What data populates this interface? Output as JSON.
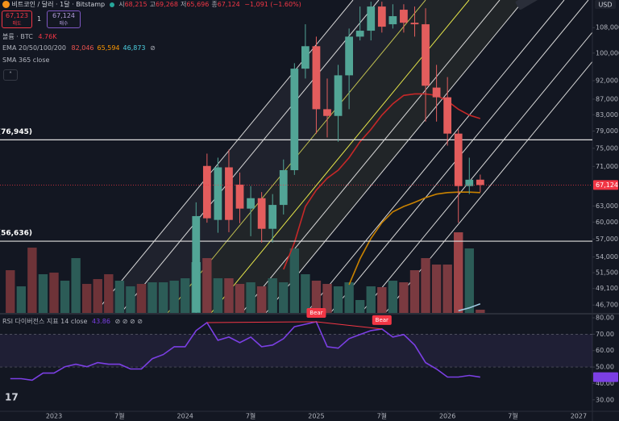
{
  "header": {
    "symbol": "비트코인 / 달러 · 1달 · Bitstamp",
    "ohlc": [
      {
        "label": "시",
        "value": "68,215"
      },
      {
        "label": "고",
        "value": "69,268"
      },
      {
        "label": "저",
        "value": "65,696"
      },
      {
        "label": "종",
        "value": "67,124"
      }
    ],
    "change": "−1,091 (−1.60%)"
  },
  "order_buttons": {
    "sell_price": "67,123",
    "sell_label": "매도",
    "quantity": "1",
    "buy_price": "67,124",
    "buy_label": "매수"
  },
  "currency": "USD",
  "chart_data": [
    {
      "type": "candlestick",
      "log": true,
      "grid": false,
      "up_color": "#52a596",
      "down_color": "#e35d5d",
      "ylim": [
        45600,
        117400
      ],
      "yticks": [
        {
          "value": 108000,
          "label": "108,000"
        },
        {
          "value": 100000,
          "label": "100,000"
        },
        {
          "value": 92000,
          "label": "92,000"
        },
        {
          "value": 87000,
          "label": "87,000"
        },
        {
          "value": 83000,
          "label": "83,000"
        },
        {
          "value": 79000,
          "label": "79,000"
        },
        {
          "value": 75000,
          "label": "75,000"
        },
        {
          "value": 71000,
          "label": "71,000"
        },
        {
          "value": 63000,
          "label": "63,000"
        },
        {
          "value": 60000,
          "label": "60,000"
        },
        {
          "value": 57000,
          "label": "57,000"
        },
        {
          "value": 54000,
          "label": "54,000"
        },
        {
          "value": 51500,
          "label": "51,500"
        },
        {
          "value": 49100,
          "label": "49,100"
        },
        {
          "value": 46700,
          "label": "46,700"
        }
      ],
      "xticks": [
        {
          "value": 4,
          "label": "2023"
        },
        {
          "value": 10,
          "label": "7월"
        },
        {
          "value": 16,
          "label": "2024"
        },
        {
          "value": 22,
          "label": "7월"
        },
        {
          "value": 28,
          "label": "2025"
        },
        {
          "value": 34,
          "label": "7월"
        },
        {
          "value": 40,
          "label": "2026"
        },
        {
          "value": 46,
          "label": "7월"
        },
        {
          "value": 52,
          "label": "2027"
        }
      ],
      "open": [
        null,
        null,
        null,
        null,
        null,
        null,
        null,
        null,
        null,
        null,
        null,
        null,
        null,
        null,
        null,
        null,
        null,
        45700,
        71100,
        60400,
        70800,
        67200,
        62500,
        64500,
        58800,
        63200,
        70200,
        95400,
        102100,
        84400,
        82700,
        93500,
        105100,
        107000,
        115100,
        109100,
        114000,
        109600,
        109100,
        90100,
        87500,
        78400,
        66900,
        68215
      ],
      "high": [
        null,
        null,
        null,
        null,
        null,
        null,
        null,
        null,
        null,
        null,
        null,
        null,
        null,
        null,
        null,
        null,
        null,
        63700,
        73800,
        72900,
        74700,
        69700,
        66900,
        65700,
        65300,
        72500,
        97000,
        109100,
        105100,
        92600,
        96500,
        107700,
        115100,
        116800,
        116800,
        115900,
        115900,
        115100,
        114500,
        96500,
        93000,
        79400,
        72900,
        69268
      ],
      "low": [
        null,
        null,
        null,
        null,
        null,
        null,
        null,
        null,
        null,
        null,
        null,
        null,
        null,
        null,
        null,
        null,
        null,
        45500,
        59900,
        58100,
        58200,
        59800,
        57500,
        56400,
        56400,
        61400,
        69200,
        92600,
        78400,
        77500,
        76500,
        84400,
        103900,
        103900,
        106400,
        107700,
        106400,
        105100,
        81300,
        81300,
        75600,
        59900,
        65300,
        65696
      ],
      "close": [
        null,
        null,
        null,
        null,
        null,
        null,
        null,
        null,
        null,
        null,
        null,
        null,
        null,
        null,
        null,
        null,
        null,
        61100,
        60700,
        70800,
        60400,
        62500,
        64500,
        58800,
        63200,
        70200,
        95400,
        102100,
        84400,
        82700,
        93500,
        105100,
        107000,
        115100,
        108300,
        111800,
        109600,
        109100,
        90600,
        87500,
        78400,
        66900,
        68200,
        67124
      ],
      "current_price_label": "67,124",
      "hlines": [
        {
          "value": 76945,
          "label": "(76,945)"
        },
        {
          "value": 56636,
          "label": "(56,636)"
        }
      ],
      "volume": {
        "name": "볼륨 · BTC",
        "ylim": [
          0,
          150000
        ],
        "last_label": "4.76K",
        "values": [
          63070,
          39270,
          96390,
          57120,
          59500,
          47600,
          80920,
          42840,
          49980,
          57120,
          47600,
          39270,
          42840,
          45220,
          45220,
          47600,
          51170,
          74970,
          80920,
          51170,
          51170,
          42840,
          45220,
          39270,
          51170,
          45220,
          95200,
          57120,
          47600,
          42840,
          39270,
          45220,
          19040,
          39270,
          38080,
          47600,
          45220,
          63070,
          80920,
          71400,
          71400,
          119000,
          95200,
          4760
        ],
        "colors": [
          "#6e3338",
          "#2c5c57",
          "#6e3338",
          "#2c5c57",
          "#6e3338",
          "#2c5c57",
          "#2c5c57",
          "#6e3338",
          "#6e3338",
          "#6e3338",
          "#2c5c57",
          "#2c5c57",
          "#6e3338",
          "#2c5c57",
          "#2c5c57",
          "#2c5c57",
          "#2c5c57",
          "#3f8c7f",
          "#7a3a40",
          "#2c5c57",
          "#7a3a40",
          "#7a3a40",
          "#2c5c57",
          "#7a3a40",
          "#2c5c57",
          "#2c5c57",
          "#2c5c57",
          "#2c5c57",
          "#7a3a40",
          "#7a3a40",
          "#2c5c57",
          "#2c5c57",
          "#2c5c57",
          "#2c5c57",
          "#7a3a40",
          "#2c5c57",
          "#7a3a40",
          "#7a3a40",
          "#7a3a40",
          "#7a3a40",
          "#7a3a40",
          "#9c4448",
          "#2c5c57",
          "#7a3a40"
        ]
      },
      "ema": {
        "name": "EMA 20/50/100/200",
        "series": [
          {
            "color": "#c62828",
            "label_color": "#ef5350",
            "last_label": "82,046",
            "values": [
              null,
              null,
              null,
              null,
              null,
              null,
              null,
              null,
              null,
              null,
              null,
              null,
              null,
              null,
              null,
              null,
              null,
              null,
              null,
              null,
              null,
              null,
              null,
              null,
              null,
              52000,
              56400,
              62900,
              66100,
              68500,
              70200,
              72900,
              76500,
              79400,
              82900,
              85800,
              88000,
              88400,
              88400,
              88000,
              86500,
              84400,
              82900,
              82046
            ]
          },
          {
            "color": "#c98200",
            "label_color": "#ff9800",
            "last_label": "65,594",
            "values": [
              null,
              null,
              null,
              null,
              null,
              null,
              null,
              null,
              null,
              null,
              null,
              null,
              null,
              null,
              null,
              null,
              null,
              null,
              null,
              null,
              null,
              null,
              null,
              null,
              null,
              null,
              null,
              null,
              null,
              null,
              null,
              49650,
              53700,
              57100,
              59900,
              61900,
              62900,
              63700,
              64600,
              65300,
              65600,
              65700,
              65700,
              65594
            ]
          },
          {
            "color": "#9ec9e0",
            "label_color": "#4dd0e1",
            "last_label": "46,873",
            "values": [
              null,
              null,
              null,
              null,
              null,
              null,
              null,
              null,
              null,
              null,
              null,
              null,
              null,
              null,
              null,
              null,
              null,
              null,
              null,
              null,
              null,
              null,
              null,
              null,
              null,
              null,
              null,
              null,
              null,
              null,
              null,
              null,
              null,
              null,
              null,
              null,
              null,
              null,
              null,
              null,
              null,
              45900,
              46300,
              46873
            ]
          }
        ]
      },
      "sma_name": "SMA 365 close"
    },
    {
      "type": "line",
      "name": "RSI 다이버전스 지표 14 close",
      "color": "#7b3fe4",
      "last_label": "43.86",
      "ylim": [
        23,
        82
      ],
      "band": [
        50,
        70
      ],
      "yticks": [
        {
          "value": 80,
          "label": "80.00"
        },
        {
          "value": 70,
          "label": "70.00"
        },
        {
          "value": 60,
          "label": "60.00"
        },
        {
          "value": 50,
          "label": "50.00"
        },
        {
          "value": 40,
          "label": "40.00"
        },
        {
          "value": 30,
          "label": "30.00"
        }
      ],
      "values": [
        42.9,
        42.9,
        42.0,
        46.3,
        46.3,
        50.2,
        51.7,
        50.2,
        52.7,
        51.7,
        51.7,
        48.8,
        48.8,
        55.1,
        57.6,
        62.4,
        62.4,
        72.2,
        77.1,
        66.3,
        68.3,
        64.9,
        68.3,
        62.4,
        63.4,
        67.3,
        74.6,
        76.1,
        77.6,
        62.4,
        61.5,
        67.3,
        69.8,
        72.2,
        73.2,
        68.3,
        69.8,
        63.4,
        52.7,
        48.8,
        43.9,
        43.9,
        44.9,
        43.86
      ],
      "annotations": [
        {
          "text": "Bear",
          "x": [
            18,
            28
          ]
        },
        {
          "text": "Bear",
          "x": [
            28,
            34
          ]
        }
      ]
    }
  ]
}
